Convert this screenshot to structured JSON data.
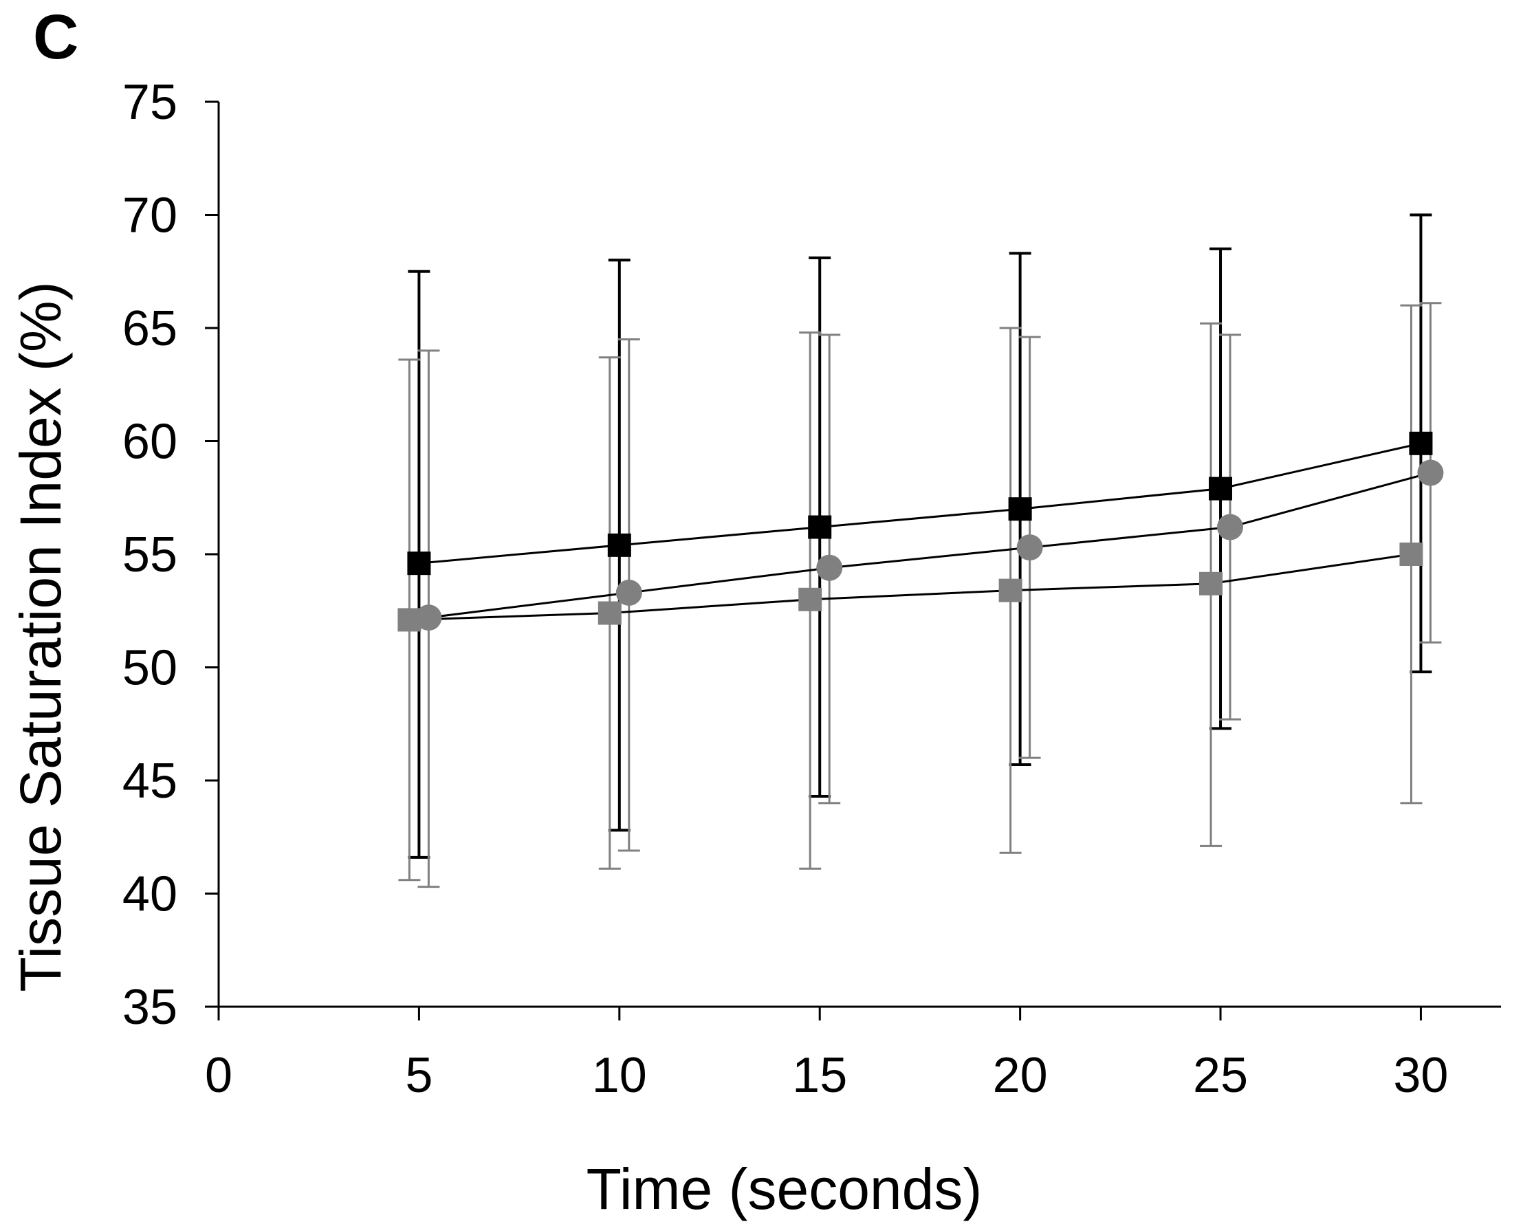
{
  "panel_label": "C",
  "chart_data": {
    "type": "line",
    "title": "",
    "xlabel": "Time (seconds)",
    "ylabel": "Tissue Saturation Index (%)",
    "xlim": [
      0,
      32
    ],
    "ylim": [
      35,
      75
    ],
    "xticks": [
      0,
      5,
      10,
      15,
      20,
      25,
      30
    ],
    "yticks": [
      35,
      40,
      45,
      50,
      55,
      60,
      65,
      70,
      75
    ],
    "grid": false,
    "legend": "none",
    "colors": {
      "black": "#000000",
      "gray": "#808080",
      "line": "#000000"
    },
    "series": [
      {
        "name": "Series 1 (black squares)",
        "marker": "square",
        "color": "#000000",
        "x": [
          5,
          10,
          15,
          20,
          25,
          30
        ],
        "values": [
          54.6,
          55.4,
          56.2,
          57.0,
          57.9,
          59.9
        ],
        "err_high": [
          67.5,
          68.0,
          68.1,
          68.3,
          68.5,
          70.0
        ],
        "err_low": [
          41.6,
          42.8,
          44.3,
          45.7,
          47.3,
          49.8
        ]
      },
      {
        "name": "Series 2 (gray squares)",
        "marker": "square",
        "color": "#808080",
        "x": [
          5,
          10,
          15,
          20,
          25,
          30
        ],
        "values": [
          52.1,
          52.4,
          53.0,
          53.4,
          53.7,
          55.0
        ],
        "err_high": [
          63.6,
          63.7,
          64.8,
          65.0,
          65.2,
          66.0
        ],
        "err_low": [
          40.6,
          41.1,
          41.1,
          41.8,
          42.1,
          44.0
        ]
      },
      {
        "name": "Series 3 (gray circles)",
        "marker": "circle",
        "color": "#808080",
        "x": [
          5,
          10,
          15,
          20,
          25,
          30
        ],
        "values": [
          52.2,
          53.3,
          54.4,
          55.3,
          56.2,
          58.6
        ],
        "err_high": [
          64.0,
          64.5,
          64.7,
          64.6,
          64.7,
          66.1
        ],
        "err_low": [
          40.3,
          41.9,
          44.0,
          46.0,
          47.7,
          51.1
        ]
      }
    ]
  }
}
